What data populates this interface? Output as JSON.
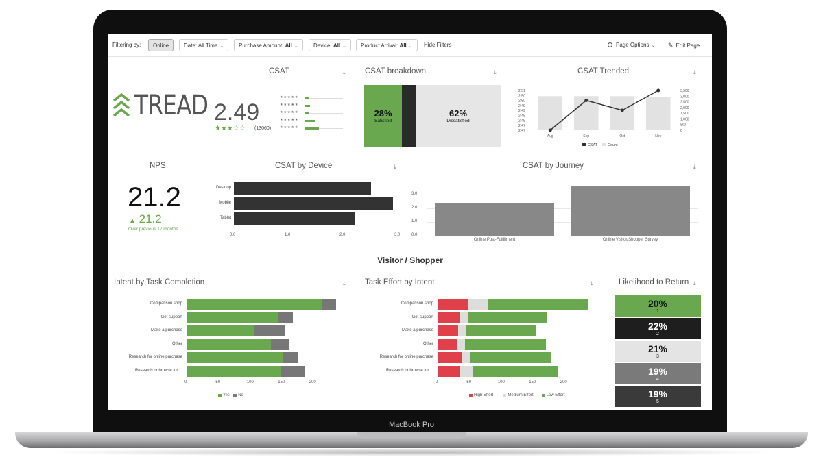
{
  "device": {
    "model": "MacBook Pro"
  },
  "filters": {
    "label": "Filtering by:",
    "online": "Online",
    "date": {
      "name": "Date:",
      "value": "All Time"
    },
    "purchase_amount": {
      "name": "Purchase Amount:",
      "value": "All"
    },
    "device": {
      "name": "Device:",
      "value": "All"
    },
    "product_arrival": {
      "name": "Product Arrival:",
      "value": "All"
    },
    "hide": "Hide Filters",
    "page_options": "Page Options",
    "edit_page": "Edit Page"
  },
  "csat": {
    "title": "CSAT",
    "logo_text": "TREAD",
    "score": "2.49",
    "rating_count": "(13060)",
    "stars": 2.5,
    "distribution": [
      0.1,
      0.14,
      0.1,
      0.28,
      0.38
    ]
  },
  "csat_breakdown": {
    "title": "CSAT breakdown",
    "satisfied_pct": "28%",
    "satisfied_label": "Satisfied",
    "dissatisfied_pct": "62%",
    "dissatisfied_label": "Dissatisfied",
    "colors": {
      "satisfied": "#6aa84f",
      "neutral": "#2a2a2a",
      "dissatisfied": "#e6e6e6"
    }
  },
  "csat_trended": {
    "title": "CSAT Trended",
    "chart_data": {
      "type": "bar+line",
      "categories": [
        "Aug",
        "Sep",
        "Oct",
        "Nov"
      ],
      "series": [
        {
          "name": "CSAT",
          "type": "line",
          "values": [
            2.47,
            2.5,
            2.49,
            2.51
          ]
        },
        {
          "name": "Count",
          "type": "bar",
          "values": [
            3000,
            3000,
            3000,
            2900
          ]
        }
      ],
      "left_ticks": [
        "2.51",
        "2.50",
        "2.50",
        "2.49",
        "2.49",
        "2.48",
        "2.48",
        "2.47",
        "2.47"
      ],
      "right_ticks": [
        "3,500",
        "3,000",
        "2,500",
        "2,000",
        "1,500",
        "1,000",
        "500",
        "0"
      ],
      "ylim_left": [
        2.47,
        2.51
      ],
      "ylim_right": [
        0,
        3500
      ]
    }
  },
  "nps": {
    "title": "NPS",
    "score": "21.2",
    "change": "21.2",
    "change_label": "Over previous 12 months"
  },
  "csat_device": {
    "title": "CSAT by Device",
    "chart_data": {
      "type": "bar",
      "categories": [
        "Desktop",
        "Mobile",
        "Tablet"
      ],
      "values": [
        2.5,
        2.9,
        2.2
      ],
      "ticks": [
        "0.0",
        "1.0",
        "2.0",
        "3.0"
      ],
      "xlim": [
        0,
        3.0
      ]
    }
  },
  "csat_journey": {
    "title": "CSAT by Journey",
    "chart_data": {
      "type": "bar",
      "categories": [
        "Online Post-Fulfillment",
        "Online Visitor/Shopper Survey"
      ],
      "values": [
        2.4,
        3.6
      ],
      "ticks": [
        "3.0",
        "2.0",
        "1.0",
        "0.0"
      ],
      "ylim": [
        0,
        3.8
      ]
    }
  },
  "section_title": "Visitor / Shopper",
  "intent_task": {
    "title": "Intent by Task Completion",
    "chart_data": {
      "type": "stacked-bar",
      "categories": [
        "Comparison shop",
        "Get support",
        "Make a purchase",
        "Other",
        "Research for online purchase",
        "Research or browse for ..."
      ],
      "series": [
        {
          "name": "Yes",
          "values": [
            218,
            148,
            108,
            135,
            155,
            152
          ]
        },
        {
          "name": "No",
          "values": [
            22,
            23,
            50,
            30,
            25,
            38
          ]
        }
      ],
      "ticks": [
        "0",
        "50",
        "100",
        "150",
        "200"
      ],
      "xlim": [
        0,
        240
      ],
      "colors": {
        "Yes": "#6aa84f",
        "No": "#777777"
      }
    }
  },
  "task_effort": {
    "title": "Task Effort by Intent",
    "chart_data": {
      "type": "stacked-bar",
      "categories": [
        "Comparison shop",
        "Get support",
        "Make a purchase",
        "Other",
        "Research for online purchase",
        "Research or browse for ..."
      ],
      "series": [
        {
          "name": "High Effort",
          "values": [
            50,
            35,
            33,
            32,
            38,
            36
          ]
        },
        {
          "name": "Medium Effort",
          "values": [
            32,
            13,
            12,
            12,
            15,
            20
          ]
        },
        {
          "name": "Low Effort",
          "values": [
            160,
            128,
            113,
            130,
            130,
            137
          ]
        }
      ],
      "ticks": [
        "0",
        "50",
        "100",
        "150",
        "200"
      ],
      "xlim": [
        0,
        240
      ],
      "colors": {
        "High Effort": "#e0404a",
        "Medium Effort": "#dddddd",
        "Low Effort": "#6aa84f"
      }
    }
  },
  "likelihood": {
    "title": "Likelihood to Return",
    "items": [
      {
        "pct": "20%",
        "n": "1",
        "bg": "#6aa84f",
        "fg": "#111111"
      },
      {
        "pct": "22%",
        "n": "2",
        "bg": "#1e1e1e",
        "fg": "#ffffff"
      },
      {
        "pct": "21%",
        "n": "3",
        "bg": "#e4e4e4",
        "fg": "#111111"
      },
      {
        "pct": "19%",
        "n": "4",
        "bg": "#7a7a7a",
        "fg": "#ffffff"
      },
      {
        "pct": "19%",
        "n": "5",
        "bg": "#3a3a3a",
        "fg": "#ffffff"
      }
    ]
  }
}
